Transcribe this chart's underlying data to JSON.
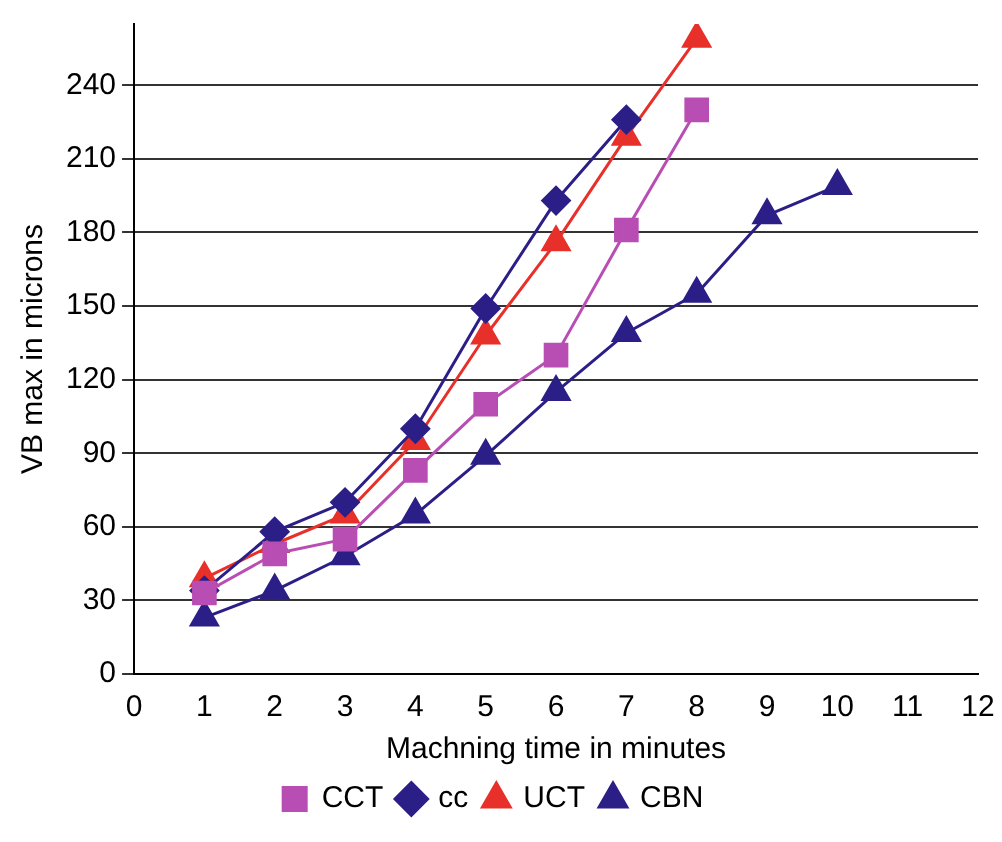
{
  "chart_data": {
    "type": "line",
    "xlabel": "Machning time in minutes",
    "ylabel": "VB max in microns",
    "x": [
      1,
      2,
      3,
      4,
      5,
      6,
      7,
      8,
      9,
      10
    ],
    "xlim": [
      0,
      12
    ],
    "xticks": [
      0,
      1,
      2,
      3,
      4,
      5,
      6,
      7,
      8,
      9,
      10,
      11,
      12
    ],
    "ylim": [
      0,
      265
    ],
    "yticks": [
      0,
      30,
      60,
      90,
      120,
      150,
      180,
      210,
      240
    ],
    "grid": "y",
    "legend": "bottom",
    "series": [
      {
        "name": "cc",
        "color": "#2b1f87",
        "marker": "diamond",
        "values": [
          34,
          58,
          70,
          100,
          149,
          193,
          226,
          null,
          null,
          null
        ]
      },
      {
        "name": "UCT",
        "color": "#e8302a",
        "marker": "triangle",
        "values": [
          39,
          53,
          65,
          95,
          138,
          176,
          219,
          259,
          null,
          null
        ]
      },
      {
        "name": "CCT",
        "color": "#b84db4",
        "marker": "square",
        "values": [
          33,
          49,
          55,
          83,
          110,
          130,
          181,
          230,
          null,
          null
        ]
      },
      {
        "name": "CBN",
        "color": "#2b1f87",
        "marker": "triangle",
        "values": [
          23,
          34,
          48,
          65,
          89,
          115,
          139,
          155,
          187,
          199
        ]
      }
    ]
  }
}
